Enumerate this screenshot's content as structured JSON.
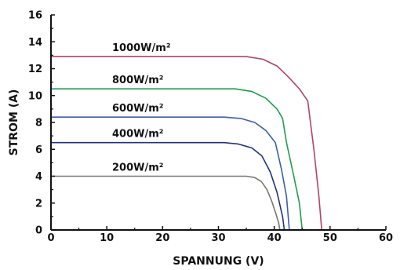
{
  "chart_data": {
    "type": "line",
    "xlabel": "SPANNUNG (V)",
    "ylabel": "STROM (A)",
    "xlim": [
      0,
      60
    ],
    "ylim": [
      0,
      16
    ],
    "xticks": [
      0,
      10,
      20,
      30,
      40,
      50,
      60
    ],
    "yticks": [
      0,
      2,
      4,
      6,
      8,
      10,
      12,
      14,
      16
    ],
    "grid": false,
    "series": [
      {
        "name": "1000W/m²",
        "color": "#b5416b",
        "points": [
          [
            0,
            12.9
          ],
          [
            35,
            12.9
          ],
          [
            38,
            12.7
          ],
          [
            40.5,
            12.2
          ],
          [
            42.5,
            11.4
          ],
          [
            44.5,
            10.5
          ],
          [
            46,
            9.6
          ],
          [
            47.1,
            6
          ],
          [
            48,
            2.5
          ],
          [
            48.5,
            0
          ]
        ]
      },
      {
        "name": "800W/m²",
        "color": "#1e9e4f",
        "points": [
          [
            0,
            10.5
          ],
          [
            33,
            10.5
          ],
          [
            36,
            10.3
          ],
          [
            38.5,
            9.8
          ],
          [
            40.5,
            9.0
          ],
          [
            41.5,
            8.3
          ],
          [
            42.2,
            6.5
          ],
          [
            43.5,
            4.0
          ],
          [
            44.5,
            2.0
          ],
          [
            45,
            0
          ]
        ]
      },
      {
        "name": "600W/m²",
        "color": "#3d5db0",
        "points": [
          [
            0,
            8.4
          ],
          [
            31,
            8.4
          ],
          [
            34,
            8.3
          ],
          [
            36.5,
            8.0
          ],
          [
            38.5,
            7.4
          ],
          [
            40.2,
            6.5
          ],
          [
            41.3,
            4.5
          ],
          [
            42.2,
            2.5
          ],
          [
            42.7,
            0
          ]
        ]
      },
      {
        "name": "400W/m²",
        "color": "#23327f",
        "points": [
          [
            0,
            6.5
          ],
          [
            31,
            6.5
          ],
          [
            33.5,
            6.4
          ],
          [
            36,
            6.1
          ],
          [
            37.8,
            5.5
          ],
          [
            39.3,
            4.3
          ],
          [
            40.5,
            2.8
          ],
          [
            41.5,
            1.0
          ],
          [
            41.8,
            0
          ]
        ]
      },
      {
        "name": "200W/m²",
        "color": "#777777",
        "points": [
          [
            0,
            4.0
          ],
          [
            35,
            4.0
          ],
          [
            36.5,
            3.9
          ],
          [
            37.7,
            3.6
          ],
          [
            38.7,
            3.0
          ],
          [
            39.5,
            2.2
          ],
          [
            40.3,
            1.2
          ],
          [
            40.8,
            0.5
          ],
          [
            41,
            0
          ]
        ]
      }
    ]
  }
}
